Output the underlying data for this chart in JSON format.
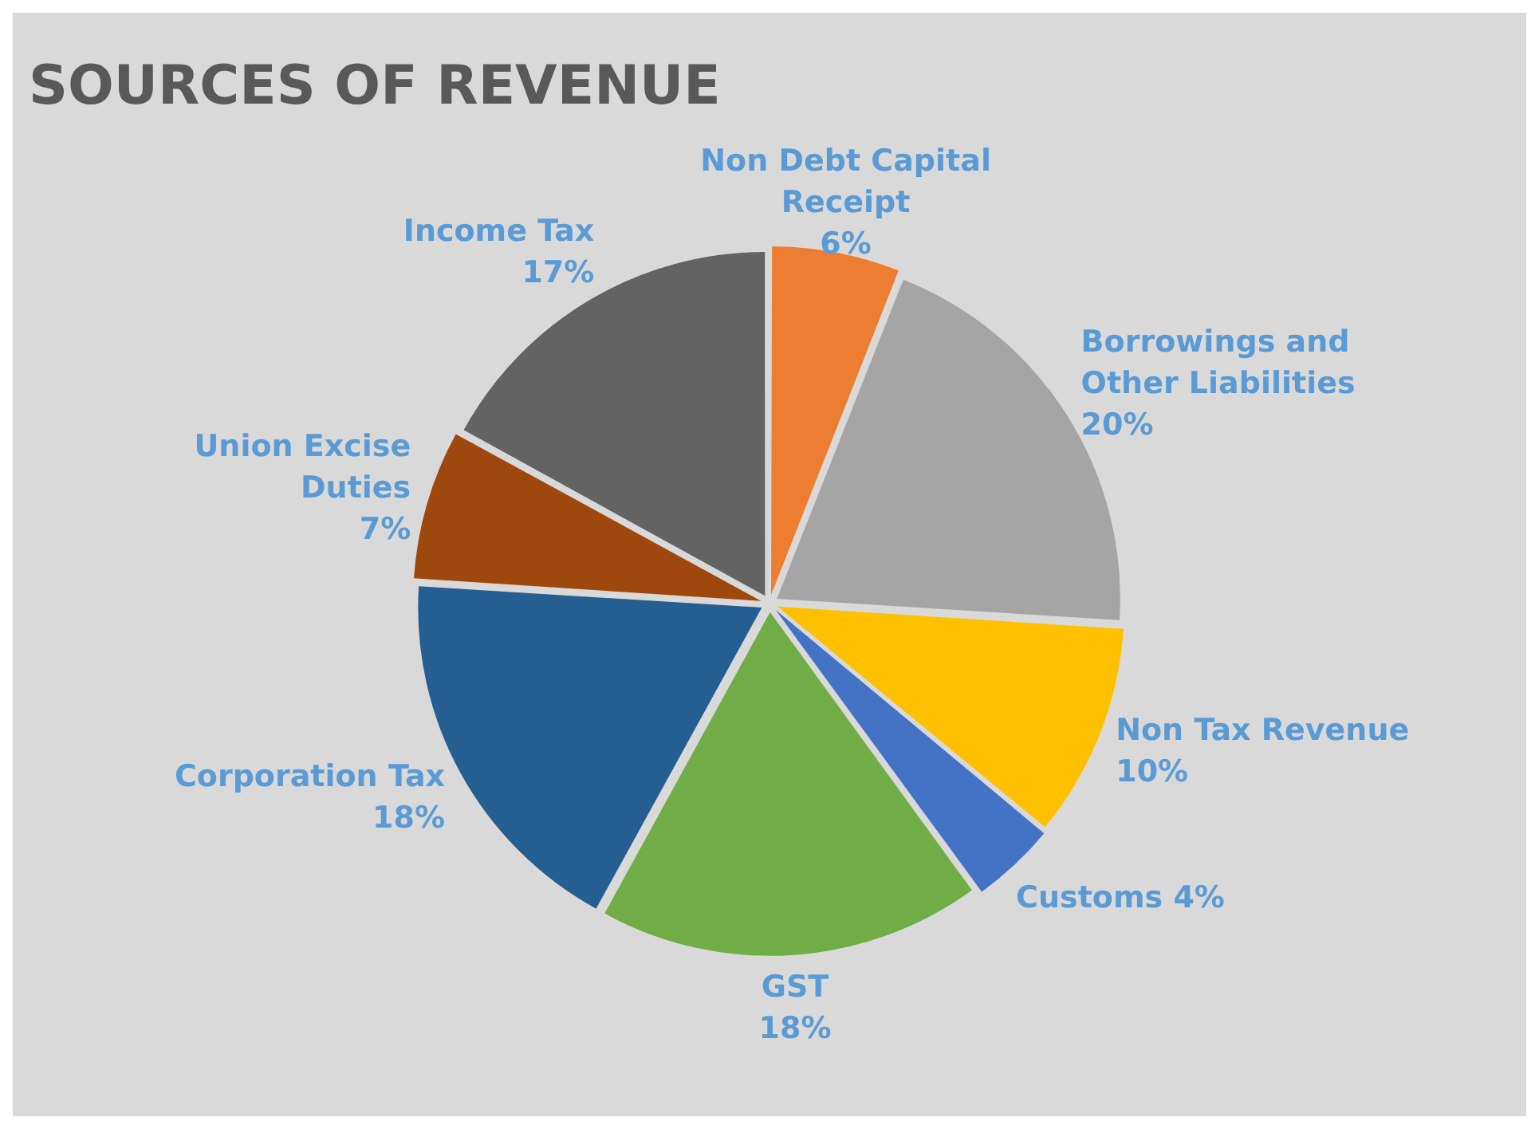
{
  "chart_data": {
    "type": "pie",
    "title": "SOURCES OF REVENUE",
    "categories": [
      "Non Debt Capital Receipt",
      "Borrowings and Other Liabilities",
      "Non Tax Revenue",
      "Customs",
      "GST",
      "Corporation Tax",
      "Union Excise Duties",
      "Income Tax"
    ],
    "values": [
      6,
      20,
      10,
      4,
      18,
      18,
      7,
      17
    ],
    "value_labels": [
      "6%",
      "20%",
      "10%",
      "4%",
      "18%",
      "18%",
      "7%",
      "17%"
    ],
    "colors": [
      "#ed7d31",
      "#a5a5a5",
      "#ffc000",
      "#4472c4",
      "#70ad47",
      "#255e91",
      "#9e480e",
      "#636363"
    ],
    "data_labels": true,
    "legend": false
  }
}
